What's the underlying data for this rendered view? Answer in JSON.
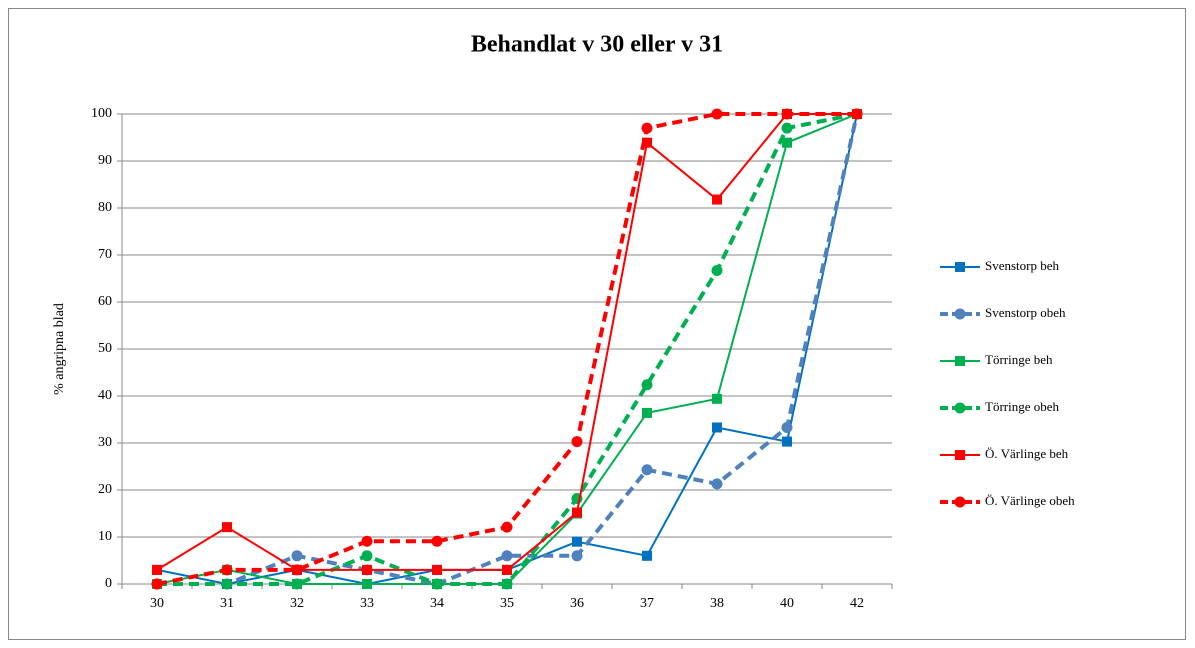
{
  "chart_data": {
    "type": "line",
    "title": "Behandlat v 30 eller v 31",
    "y_label": "% angripna blad",
    "categories": [
      "30",
      "31",
      "32",
      "33",
      "34",
      "35",
      "36",
      "37",
      "38",
      "40",
      "42"
    ],
    "ylim": [
      0,
      100
    ],
    "yticks": [
      0,
      10,
      20,
      30,
      40,
      50,
      60,
      70,
      80,
      90,
      100
    ],
    "grid": true,
    "legend": "right",
    "series": [
      {
        "name": "Svenstorp beh",
        "color": "#0070c0",
        "dashed": false,
        "marker": "square",
        "values": [
          3,
          0,
          3,
          0,
          3,
          3,
          9,
          6,
          33.3,
          30.3,
          100
        ]
      },
      {
        "name": "Svenstorp obeh",
        "color": "#4f81bd",
        "dashed": true,
        "marker": "circle",
        "values": [
          0,
          0,
          6,
          3,
          0,
          6,
          6,
          24.3,
          21.3,
          33.3,
          100
        ]
      },
      {
        "name": "Törringe beh",
        "color": "#00b050",
        "dashed": false,
        "marker": "square",
        "values": [
          0,
          3,
          0,
          0,
          0,
          0,
          15,
          36.4,
          39.4,
          93.9,
          100
        ]
      },
      {
        "name": "Törringe obeh",
        "color": "#00b050",
        "dashed": true,
        "marker": "circle",
        "values": [
          0,
          0,
          0,
          6,
          0,
          0,
          18.2,
          42.4,
          66.7,
          97,
          100
        ]
      },
      {
        "name": "Ö. Värlinge  beh",
        "color": "#ff0000",
        "dashed": false,
        "marker": "square",
        "values": [
          3,
          12.1,
          3,
          3,
          3,
          3,
          15.2,
          93.9,
          81.8,
          100,
          100
        ]
      },
      {
        "name": "Ö. Värlinge  obeh",
        "color": "#ff0000",
        "dashed": true,
        "marker": "circle",
        "values": [
          0,
          3,
          3,
          9.1,
          9.1,
          12.1,
          30.3,
          97,
          100,
          100,
          100
        ]
      }
    ]
  }
}
